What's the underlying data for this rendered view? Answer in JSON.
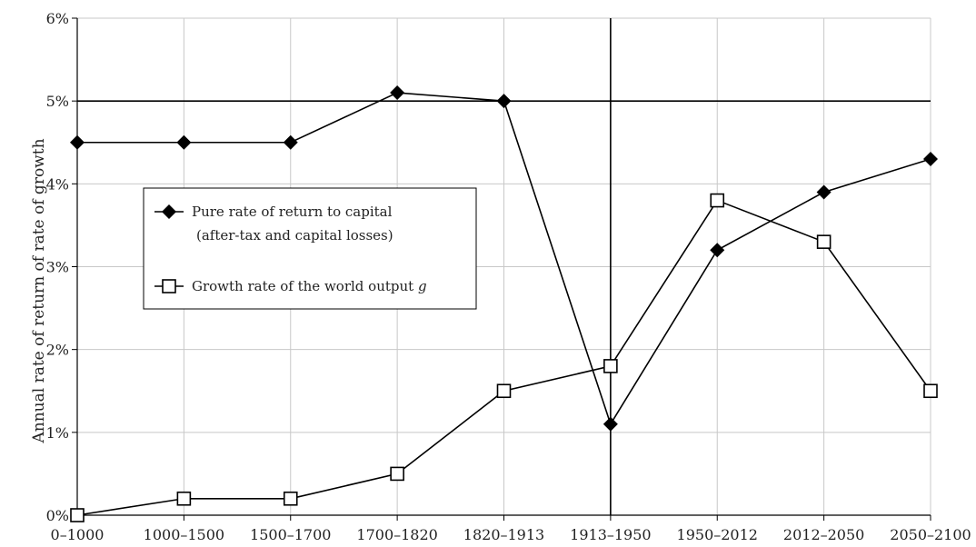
{
  "chart_data": {
    "type": "line",
    "title": "",
    "xlabel": "",
    "ylabel": "Annual rate of return of rate of growth",
    "categories": [
      "0–1000",
      "1000–1500",
      "1500–1700",
      "1700–1820",
      "1820–1913",
      "1913–1950",
      "1950–2012",
      "2012–2050",
      "2050–2100"
    ],
    "ylim": [
      0,
      6
    ],
    "y_ticks": [
      "0%",
      "1%",
      "2%",
      "3%",
      "4%",
      "5%",
      "6%"
    ],
    "grid": true,
    "reference_lines": {
      "horizontal_y": 5,
      "vertical_category": "1913–1950"
    },
    "legend_position": "left",
    "series": [
      {
        "name_line1": "Pure rate of return to capital",
        "name_line2": "(after-tax and capital losses)",
        "marker": "filled-diamond",
        "color": "#000000",
        "values": [
          4.5,
          4.5,
          4.5,
          5.1,
          5.0,
          1.1,
          3.2,
          3.9,
          4.3
        ]
      },
      {
        "name": "Growth rate of the world output",
        "name_suffix": "g",
        "marker": "open-square",
        "color": "#000000",
        "values": [
          0.0,
          0.2,
          0.2,
          0.5,
          1.5,
          1.8,
          3.8,
          3.3,
          1.5
        ]
      }
    ]
  }
}
